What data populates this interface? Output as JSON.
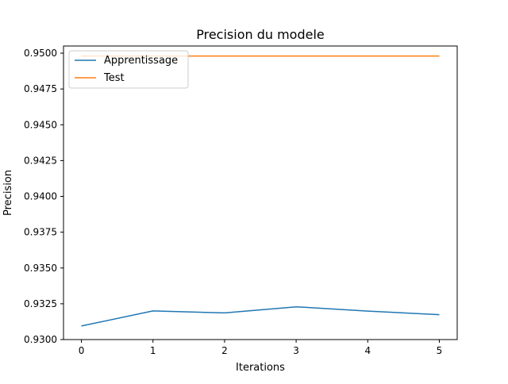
{
  "chart_data": {
    "type": "line",
    "title": "Precision du modele",
    "xlabel": "Iterations",
    "ylabel": "Precision",
    "x": [
      0,
      1,
      2,
      3,
      4,
      5
    ],
    "xlim": [
      -0.25,
      5.25
    ],
    "ylim": [
      0.93,
      0.9505
    ],
    "xticks": [
      "0",
      "1",
      "2",
      "3",
      "4",
      "5"
    ],
    "yticks": [
      "0.9300",
      "0.9325",
      "0.9350",
      "0.9375",
      "0.9400",
      "0.9425",
      "0.9450",
      "0.9475",
      "0.9500"
    ],
    "grid": false,
    "legend_position": "top-left",
    "series": [
      {
        "name": "Apprentissage",
        "color": "#1f77b4",
        "values": [
          0.93095,
          0.932,
          0.93186,
          0.93229,
          0.93199,
          0.93174
        ]
      },
      {
        "name": "Test",
        "color": "#ff7f0e",
        "values": [
          0.9498,
          0.9498,
          0.9498,
          0.9498,
          0.9498,
          0.9498
        ]
      }
    ]
  }
}
